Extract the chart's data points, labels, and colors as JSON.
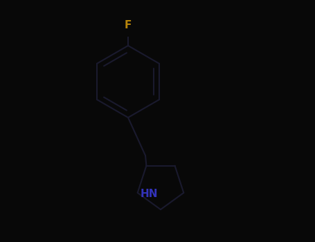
{
  "background_color": "#080808",
  "bond_color": "#1a1a2e",
  "F_color": "#b8860b",
  "NH_color": "#3333bb",
  "NH_label": "HN",
  "F_label": "F",
  "line_width": 1.5,
  "font_size_F": 11,
  "font_size_NH": 11,
  "fig_width": 4.55,
  "fig_height": 3.5,
  "dpi": 100
}
